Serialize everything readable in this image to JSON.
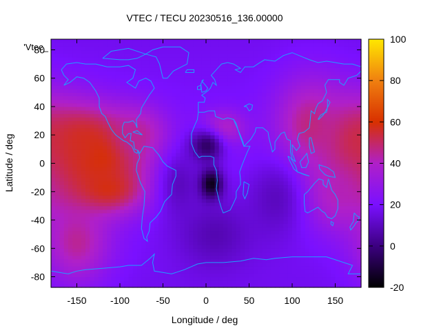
{
  "chart_data": {
    "type": "heatmap",
    "title": "VTEC / TECU 20230516_136.00000",
    "key_label": "'Vtec_",
    "xlabel": "Longitude / deg",
    "ylabel": "Latitude / deg",
    "xlim": [
      -180,
      180
    ],
    "ylim": [
      -87.5,
      87.5
    ],
    "x_ticks": [
      -150,
      -100,
      -50,
      0,
      50,
      100,
      150
    ],
    "y_ticks": [
      -80,
      -60,
      -40,
      -20,
      0,
      20,
      40,
      60,
      80
    ],
    "colorbar": {
      "min": -20,
      "max": 100,
      "ticks": [
        -20,
        0,
        20,
        40,
        60,
        80,
        100
      ]
    },
    "grid_step": {
      "lon": 5,
      "lat": 2.5
    },
    "colormap_colors": [
      "#000000",
      "#3c0080",
      "#7a10ff",
      "#b020c8",
      "#d83000",
      "#f08010",
      "#ffe800"
    ],
    "coastline_color": "#1ea0ff",
    "grid": false,
    "legend": "none",
    "features": [
      {
        "lon": -125,
        "lat": 8,
        "value": 70,
        "lon_width": 50,
        "lat_width": 25
      },
      {
        "lon": -150,
        "lat": 10,
        "value": 58,
        "lon_width": 45,
        "lat_width": 30
      },
      {
        "lon": -120,
        "lat": -18,
        "value": 60,
        "lon_width": 50,
        "lat_width": 18
      },
      {
        "lon": -80,
        "lat": 20,
        "value": 45,
        "lon_width": 35,
        "lat_width": 20
      },
      {
        "lon": -150,
        "lat": -55,
        "value": 45,
        "lon_width": 40,
        "lat_width": 30
      },
      {
        "lon": 170,
        "lat": 10,
        "value": 55,
        "lon_width": 40,
        "lat_width": 35
      },
      {
        "lon": 120,
        "lat": 25,
        "value": 48,
        "lon_width": 40,
        "lat_width": 35
      },
      {
        "lon": 150,
        "lat": -20,
        "value": 42,
        "lon_width": 40,
        "lat_width": 25
      },
      {
        "lon": 20,
        "lat": 25,
        "value": 42,
        "lon_width": 25,
        "lat_width": 12
      },
      {
        "lon": 5,
        "lat": -15,
        "value": -25,
        "lon_width": 14,
        "lat_width": 11
      },
      {
        "lon": 0,
        "lat": 12,
        "value": -5,
        "lon_width": 20,
        "lat_width": 12
      },
      {
        "lon": 10,
        "lat": -50,
        "value": 8,
        "lon_width": 45,
        "lat_width": 25
      },
      {
        "lon": -30,
        "lat": -15,
        "value": 10,
        "lon_width": 25,
        "lat_width": 25
      },
      {
        "lon": 80,
        "lat": -25,
        "value": 10,
        "lon_width": 35,
        "lat_width": 30
      }
    ],
    "background_value": 22
  }
}
